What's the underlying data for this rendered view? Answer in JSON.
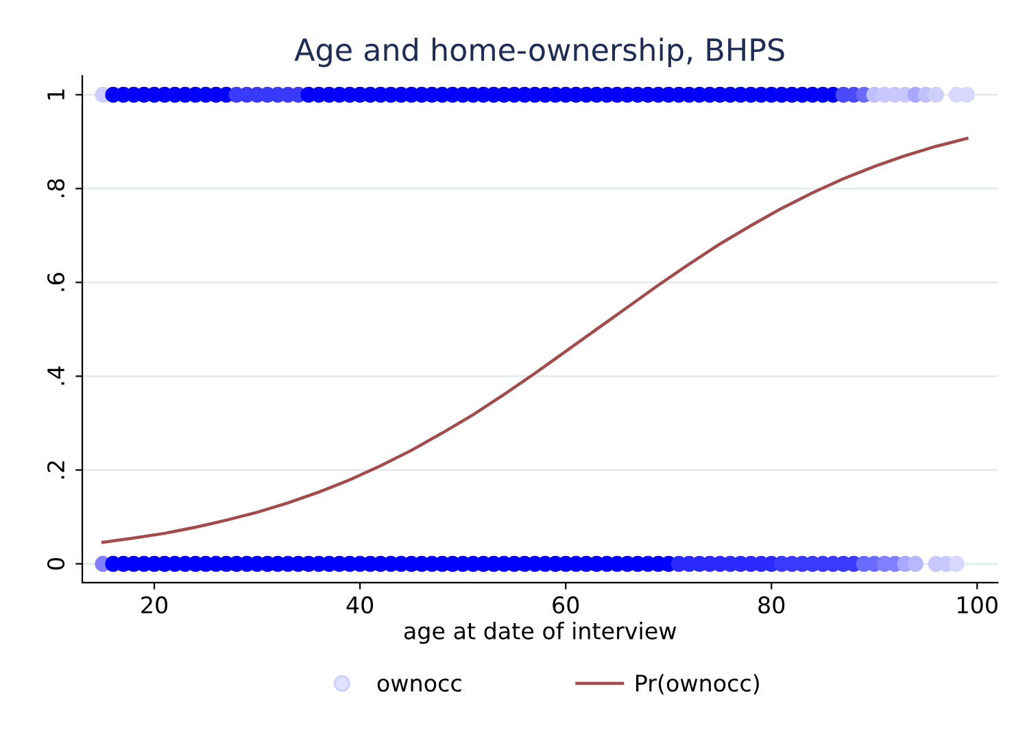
{
  "chart_data": {
    "type": "scatter",
    "title": "Age and home-ownership, BHPS",
    "xlabel": "age at date of interview",
    "xlim": [
      13,
      102
    ],
    "xticks": [
      20,
      40,
      60,
      80,
      100
    ],
    "ylim": [
      -0.04,
      1.04
    ],
    "yticks": [
      {
        "value": 0,
        "label": "0"
      },
      {
        "value": 0.2,
        "label": ".2"
      },
      {
        "value": 0.4,
        "label": ".4"
      },
      {
        "value": 0.6,
        "label": ".6"
      },
      {
        "value": 0.8,
        "label": ".8"
      },
      {
        "value": 1,
        "label": "1"
      }
    ],
    "grid": "y",
    "legend": "bottom",
    "marker": "circle",
    "series": [
      {
        "name": "ownocc",
        "color": "#0000ff",
        "x": [
          15,
          16,
          17,
          18,
          19,
          20,
          21,
          22,
          23,
          24,
          25,
          26,
          27,
          28,
          29,
          30,
          31,
          32,
          33,
          34,
          35,
          36,
          37,
          38,
          39,
          40,
          41,
          42,
          43,
          44,
          45,
          46,
          47,
          48,
          49,
          50,
          51,
          52,
          53,
          54,
          55,
          56,
          57,
          58,
          59,
          60,
          61,
          62,
          63,
          64,
          65,
          66,
          67,
          68,
          69,
          70,
          71,
          72,
          73,
          74,
          75,
          76,
          77,
          78,
          79,
          80,
          81,
          82,
          83,
          84,
          85,
          86,
          87,
          88,
          89,
          90,
          91,
          92,
          93,
          94,
          95,
          96,
          98,
          99,
          15,
          16,
          17,
          18,
          19,
          20,
          21,
          22,
          23,
          24,
          25,
          26,
          27,
          28,
          29,
          30,
          31,
          32,
          33,
          34,
          35,
          36,
          37,
          38,
          39,
          40,
          41,
          42,
          43,
          44,
          45,
          46,
          47,
          48,
          49,
          50,
          51,
          52,
          53,
          54,
          55,
          56,
          57,
          58,
          59,
          60,
          61,
          62,
          63,
          64,
          65,
          66,
          67,
          68,
          69,
          70,
          71,
          72,
          73,
          74,
          75,
          76,
          77,
          78,
          79,
          80,
          81,
          82,
          83,
          84,
          85,
          86,
          87,
          88,
          89,
          90,
          91,
          92,
          93,
          94,
          96,
          97,
          98
        ],
        "values": [
          1,
          1,
          1,
          1,
          1,
          1,
          1,
          1,
          1,
          1,
          1,
          1,
          1,
          1,
          1,
          1,
          1,
          1,
          1,
          1,
          1,
          1,
          1,
          1,
          1,
          1,
          1,
          1,
          1,
          1,
          1,
          1,
          1,
          1,
          1,
          1,
          1,
          1,
          1,
          1,
          1,
          1,
          1,
          1,
          1,
          1,
          1,
          1,
          1,
          1,
          1,
          1,
          1,
          1,
          1,
          1,
          1,
          1,
          1,
          1,
          1,
          1,
          1,
          1,
          1,
          1,
          1,
          1,
          1,
          1,
          1,
          1,
          1,
          1,
          1,
          1,
          1,
          1,
          1,
          1,
          1,
          1,
          1,
          1,
          0,
          0,
          0,
          0,
          0,
          0,
          0,
          0,
          0,
          0,
          0,
          0,
          0,
          0,
          0,
          0,
          0,
          0,
          0,
          0,
          0,
          0,
          0,
          0,
          0,
          0,
          0,
          0,
          0,
          0,
          0,
          0,
          0,
          0,
          0,
          0,
          0,
          0,
          0,
          0,
          0,
          0,
          0,
          0,
          0,
          0,
          0,
          0,
          0,
          0,
          0,
          0,
          0,
          0,
          0,
          0,
          0,
          0,
          0,
          0,
          0,
          0,
          0,
          0,
          0,
          0,
          0,
          0,
          0,
          0,
          0,
          0,
          0,
          0,
          0,
          0,
          0,
          0,
          0,
          0,
          0,
          0,
          0
        ],
        "colors": [
          "#ccccff",
          "#0000ff",
          "#0000ff",
          "#0000ff",
          "#0000ff",
          "#0000ff",
          "#0000ff",
          "#0000ff",
          "#0000ff",
          "#0000ff",
          "#0000ff",
          "#0000ff",
          "#0000ff",
          "#3a3aff",
          "#3a3aff",
          "#3a3aff",
          "#3a3aff",
          "#3a3aff",
          "#3a3aff",
          "#3a3aff",
          "#0000ff",
          "#0000ff",
          "#0000ff",
          "#0000ff",
          "#0000ff",
          "#0000ff",
          "#0000ff",
          "#0000ff",
          "#0000ff",
          "#0000ff",
          "#0000ff",
          "#0000ff",
          "#0000ff",
          "#0000ff",
          "#0000ff",
          "#0000ff",
          "#0000ff",
          "#0000ff",
          "#0000ff",
          "#0000ff",
          "#0000ff",
          "#0000ff",
          "#0000ff",
          "#0000ff",
          "#0000ff",
          "#0000ff",
          "#0000ff",
          "#0000ff",
          "#0000ff",
          "#0000ff",
          "#0000ff",
          "#0000ff",
          "#0000ff",
          "#0000ff",
          "#0000ff",
          "#0000ff",
          "#0000ff",
          "#0000ff",
          "#0000ff",
          "#0000ff",
          "#0000ff",
          "#0000ff",
          "#0000ff",
          "#0000ff",
          "#0000ff",
          "#0000ff",
          "#0000ff",
          "#0000ff",
          "#0000ff",
          "#0000ff",
          "#0000ff",
          "#0000ff",
          "#4a4aff",
          "#4a4aff",
          "#6a6aff",
          "#c0c0ff",
          "#c8c8ff",
          "#c8c8ff",
          "#c8c8ff",
          "#a8a8ff",
          "#c0c0ff",
          "#d0d0ff",
          "#d8d8ff",
          "#d8d8ff",
          "#8080ff",
          "#0000ff",
          "#0000ff",
          "#0000ff",
          "#0000ff",
          "#0000ff",
          "#0000ff",
          "#0000ff",
          "#0000ff",
          "#0000ff",
          "#0000ff",
          "#0000ff",
          "#0000ff",
          "#0000ff",
          "#0000ff",
          "#0000ff",
          "#0000ff",
          "#0000ff",
          "#0000ff",
          "#0000ff",
          "#0000ff",
          "#0000ff",
          "#0000ff",
          "#0000ff",
          "#0000ff",
          "#0000ff",
          "#0000ff",
          "#0000ff",
          "#0000ff",
          "#0000ff",
          "#0000ff",
          "#0000ff",
          "#0000ff",
          "#0000ff",
          "#0000ff",
          "#0000ff",
          "#0000ff",
          "#0000ff",
          "#0000ff",
          "#0000ff",
          "#0000ff",
          "#0000ff",
          "#0000ff",
          "#0000ff",
          "#0000ff",
          "#0000ff",
          "#0000ff",
          "#0000ff",
          "#0000ff",
          "#0000ff",
          "#0000ff",
          "#0000ff",
          "#0000ff",
          "#0000ff",
          "#0000ff",
          "#0000ff",
          "#2a2aff",
          "#2a2aff",
          "#2a2aff",
          "#2a2aff",
          "#2a2aff",
          "#2a2aff",
          "#2a2aff",
          "#2a2aff",
          "#2a2aff",
          "#2a2aff",
          "#3a3aff",
          "#3a3aff",
          "#3a3aff",
          "#3a3aff",
          "#3a3aff",
          "#3a3aff",
          "#3a3aff",
          "#3a3aff",
          "#6a6aff",
          "#6a6aff",
          "#8080ff",
          "#8080ff",
          "#a8a8ff",
          "#b8b8ff",
          "#c8c8ff",
          "#c8c8ff",
          "#d8d8ff"
        ]
      },
      {
        "name": "Pr(ownocc)",
        "type": "line",
        "color": "#a44a4a",
        "marker": "none",
        "x": [
          15,
          18,
          21,
          24,
          27,
          30,
          33,
          36,
          39,
          42,
          45,
          48,
          51,
          54,
          57,
          60,
          63,
          66,
          69,
          72,
          75,
          78,
          81,
          84,
          87,
          90,
          93,
          96,
          99
        ],
        "values": [
          0.046,
          0.055,
          0.065,
          0.078,
          0.093,
          0.11,
          0.13,
          0.153,
          0.179,
          0.209,
          0.242,
          0.279,
          0.318,
          0.361,
          0.406,
          0.453,
          0.5,
          0.547,
          0.594,
          0.639,
          0.682,
          0.721,
          0.758,
          0.791,
          0.821,
          0.847,
          0.87,
          0.89,
          0.907
        ]
      }
    ]
  }
}
